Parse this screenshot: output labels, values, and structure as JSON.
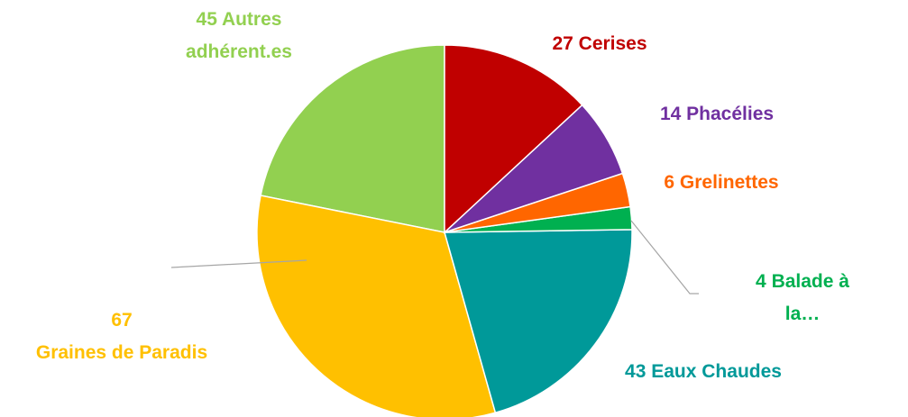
{
  "chart_data": {
    "type": "pie",
    "categories": [
      "Cerises",
      "Phacélies",
      "Grelinettes",
      "Balade à la…",
      "Eaux Chaudes",
      "Graines de Paradis",
      "Autres adhérent.es"
    ],
    "values": [
      27,
      14,
      6,
      4,
      43,
      67,
      45
    ],
    "colors": [
      "#c00000",
      "#7030a0",
      "#ff6600",
      "#00b050",
      "#009999",
      "#ffc000",
      "#92d050"
    ]
  }
}
